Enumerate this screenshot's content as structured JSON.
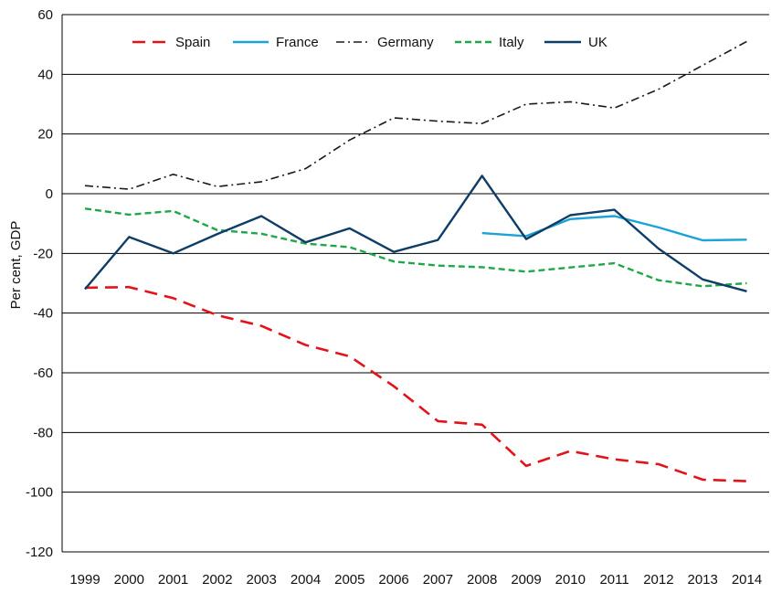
{
  "chart_data": {
    "type": "line",
    "ylabel": "Per cent, GDP",
    "xlabel": "",
    "title": "",
    "ylim": [
      -120,
      60
    ],
    "yticks": [
      60,
      40,
      20,
      0,
      -20,
      -40,
      -60,
      -80,
      -100,
      -120
    ],
    "grid": "horizontal",
    "legend_position": "top",
    "categories": [
      "1999",
      "2000",
      "2001",
      "2002",
      "2003",
      "2004",
      "2005",
      "2006",
      "2007",
      "2008",
      "2009",
      "2010",
      "2011",
      "2012",
      "2013",
      "2014"
    ],
    "series": [
      {
        "name": "Spain",
        "style": "dashed",
        "color": "#e3131b",
        "values": [
          -31.5,
          -31.3,
          -35,
          -40.7,
          -44.3,
          -50.7,
          -54.5,
          -64.5,
          -76.2,
          -77.4,
          -91.2,
          -86.2,
          -89,
          -90.6,
          -95.8,
          -96.3
        ]
      },
      {
        "name": "France",
        "style": "solid",
        "color": "#1ba3d6",
        "values": [
          null,
          null,
          null,
          null,
          null,
          null,
          null,
          null,
          null,
          -13.2,
          -14.2,
          -8.5,
          -7.5,
          -11.3,
          -15.6,
          -15.4
        ]
      },
      {
        "name": "Germany",
        "style": "dashdot",
        "color": "#1a1a1a",
        "values": [
          2.7,
          1.5,
          6.5,
          2.4,
          4,
          8.4,
          18,
          25.4,
          24.3,
          23.5,
          30,
          30.8,
          28.7,
          35,
          43,
          51
        ]
      },
      {
        "name": "Italy",
        "style": "dotted",
        "color": "#1fa74a",
        "values": [
          -5,
          -7,
          -5.8,
          -12.2,
          -13.4,
          -16.7,
          -17.9,
          -22.7,
          -24.1,
          -24.6,
          -26.1,
          -24.7,
          -23.3,
          -29,
          -31,
          -30
        ]
      },
      {
        "name": "UK",
        "style": "solid",
        "color": "#0e3d66",
        "values": [
          -32,
          -14.5,
          -20,
          -13.5,
          -7.5,
          -16.3,
          -11.6,
          -19.5,
          -15.5,
          6,
          -15.2,
          -7.2,
          -5.4,
          -18.4,
          -28.7,
          -32.7
        ]
      }
    ]
  }
}
